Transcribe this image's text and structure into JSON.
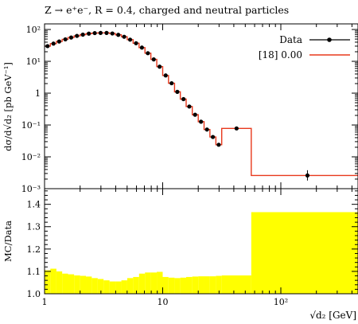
{
  "chart_data": {
    "type": "line",
    "title": "Z → e⁺e⁻, R = 0.4, charged and neutral particles",
    "xlabel": "√d₂ [GeV]",
    "x_scale": "log",
    "xlim": [
      1,
      450
    ],
    "x_ticks": [
      {
        "value": 1,
        "label": "1"
      },
      {
        "value": 10,
        "label": "10"
      },
      {
        "value": 100,
        "label": "10²"
      }
    ],
    "top_panel": {
      "ylabel": "dσ/d√d₂ [pb GeV⁻¹]",
      "y_scale": "log",
      "ylim": [
        0.001,
        150
      ],
      "y_ticks": [
        {
          "value": 100,
          "label": "10²"
        },
        {
          "value": 10,
          "label": "10¹"
        },
        {
          "value": 1,
          "label": "1"
        },
        {
          "value": 0.1,
          "label": "10⁻¹"
        },
        {
          "value": 0.01,
          "label": "10⁻²"
        },
        {
          "value": 0.001,
          "label": "10⁻³"
        }
      ],
      "legend_position": "top-right",
      "series": [
        {
          "name": "Data",
          "style": "points",
          "color": "#000000",
          "x": [
            1.06,
            1.19,
            1.33,
            1.5,
            1.68,
            1.88,
            2.11,
            2.37,
            2.66,
            2.98,
            3.35,
            3.75,
            4.21,
            4.72,
            5.3,
            5.95,
            6.67,
            7.49,
            8.4,
            9.42,
            10.6,
            11.9,
            13.3,
            15.0,
            16.8,
            18.8,
            21.1,
            23.7,
            26.6,
            29.8,
            42.2,
            168
          ],
          "y": [
            30,
            36,
            42,
            49,
            56,
            63,
            69,
            74,
            77,
            78,
            78,
            75,
            68,
            59,
            48,
            37,
            27,
            18,
            11.5,
            6.8,
            3.6,
            2.05,
            1.1,
            0.65,
            0.38,
            0.21,
            0.127,
            0.072,
            0.042,
            0.024,
            0.078,
            0.0026
          ],
          "y_err_low": [
            0,
            0,
            0,
            0,
            0,
            0,
            0,
            0,
            0,
            0,
            0,
            0,
            0,
            0,
            0,
            0,
            0,
            0,
            0,
            0,
            0,
            0,
            0,
            0,
            0,
            0,
            0,
            0,
            0,
            0,
            0,
            0.0008
          ],
          "y_err_high": [
            0,
            0,
            0,
            0,
            0,
            0,
            0,
            0,
            0,
            0,
            0,
            0,
            0,
            0,
            0,
            0,
            0,
            0,
            0,
            0,
            0,
            0,
            0,
            0,
            0,
            0,
            0,
            0,
            0,
            0,
            0,
            0.0012
          ]
        },
        {
          "name": "[18] 0.00",
          "style": "step",
          "color": "#e8381c",
          "bin_edges": [
            1.0,
            1.12,
            1.26,
            1.41,
            1.58,
            1.78,
            2.0,
            2.24,
            2.51,
            2.82,
            3.16,
            3.55,
            3.98,
            4.47,
            5.01,
            5.62,
            6.31,
            7.08,
            7.94,
            8.91,
            10.0,
            11.2,
            12.6,
            14.1,
            15.8,
            17.8,
            20.0,
            22.4,
            25.1,
            28.2,
            31.6,
            56.2,
            500
          ],
          "values": [
            30,
            36,
            42,
            49,
            56,
            63,
            69,
            74,
            77,
            78,
            78,
            75,
            68,
            59,
            48,
            37,
            27,
            18,
            11.5,
            6.8,
            3.6,
            2.05,
            1.1,
            0.65,
            0.38,
            0.21,
            0.127,
            0.072,
            0.042,
            0.024,
            0.078,
            0.0026
          ]
        }
      ]
    },
    "ratio_panel": {
      "ylabel": "MC/Data",
      "ylim": [
        1.0,
        1.47
      ],
      "y_ticks": [
        {
          "value": 1.0,
          "label": "1.0"
        },
        {
          "value": 1.1,
          "label": "1.1"
        },
        {
          "value": 1.2,
          "label": "1.2"
        },
        {
          "value": 1.3,
          "label": "1.3"
        },
        {
          "value": 1.4,
          "label": "1.4"
        }
      ],
      "band_color": "#ffff00",
      "band_edges": [
        1.0,
        1.12,
        1.26,
        1.41,
        1.58,
        1.78,
        2.0,
        2.24,
        2.51,
        2.82,
        3.16,
        3.55,
        3.98,
        4.47,
        5.01,
        5.62,
        6.31,
        7.08,
        7.94,
        8.91,
        10.0,
        11.2,
        12.6,
        14.1,
        15.8,
        17.8,
        20.0,
        22.4,
        25.1,
        28.2,
        31.6,
        56.2,
        500
      ],
      "band_upper": [
        1.105,
        1.112,
        1.1,
        1.09,
        1.087,
        1.082,
        1.08,
        1.077,
        1.07,
        1.066,
        1.06,
        1.055,
        1.055,
        1.06,
        1.07,
        1.075,
        1.09,
        1.095,
        1.095,
        1.098,
        1.075,
        1.072,
        1.07,
        1.072,
        1.075,
        1.077,
        1.078,
        1.078,
        1.078,
        1.08,
        1.082,
        1.365
      ]
    }
  }
}
